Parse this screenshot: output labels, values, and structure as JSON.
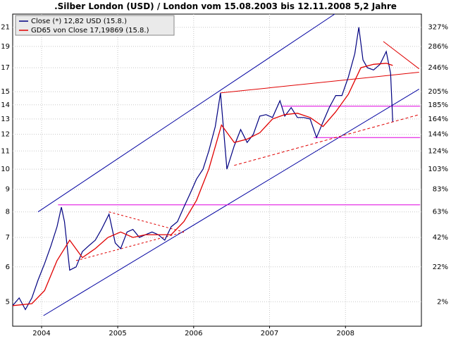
{
  "chart_data": {
    "type": "line",
    "title": ".Silber London (USD) / London vom 15.08.2003 bis 12.11.2008 5,2 Jahre",
    "xlabel": "",
    "ylabel": "",
    "y_scale": "log",
    "ylim": [
      4.4,
      22.5
    ],
    "xlim": [
      "2003-08-15",
      "2008-12-31"
    ],
    "grid": true,
    "legend_position": "top-left",
    "x_tick_labels": [
      "2004",
      "2005",
      "2006",
      "2007",
      "2008"
    ],
    "x_ticks": [
      "2004-01-01",
      "2005-01-01",
      "2006-01-01",
      "2007-01-01",
      "2008-01-01"
    ],
    "y_tick_labels_left": [
      "5",
      "6",
      "7",
      "8",
      "9",
      "10",
      "11",
      "12",
      "13",
      "14",
      "15",
      "17",
      "19",
      "21"
    ],
    "y_ticks_left": [
      5,
      6,
      7,
      8,
      9,
      10,
      11,
      12,
      13,
      14,
      15,
      17,
      19,
      21
    ],
    "y_tick_labels_right": [
      "2%",
      "22%",
      "42%",
      "63%",
      "83%",
      "103%",
      "124%",
      "144%",
      "164%",
      "185%",
      "205%",
      "246%",
      "286%",
      "327%"
    ],
    "series": [
      {
        "name": "Close (*) 12,82 USD (15.8.)",
        "color": "#000080",
        "points": [
          [
            "2003-08-15",
            4.9
          ],
          [
            "2003-09-15",
            5.1
          ],
          [
            "2003-10-15",
            4.8
          ],
          [
            "2003-11-15",
            5.1
          ],
          [
            "2003-12-15",
            5.6
          ],
          [
            "2004-01-15",
            6.1
          ],
          [
            "2004-02-15",
            6.7
          ],
          [
            "2004-03-15",
            7.4
          ],
          [
            "2004-04-05",
            8.2
          ],
          [
            "2004-04-20",
            7.6
          ],
          [
            "2004-05-15",
            5.9
          ],
          [
            "2004-06-15",
            6.0
          ],
          [
            "2004-07-15",
            6.5
          ],
          [
            "2004-08-15",
            6.7
          ],
          [
            "2004-09-15",
            6.9
          ],
          [
            "2004-10-15",
            7.3
          ],
          [
            "2004-11-20",
            7.9
          ],
          [
            "2004-12-20",
            6.8
          ],
          [
            "2005-01-15",
            6.6
          ],
          [
            "2005-02-15",
            7.2
          ],
          [
            "2005-03-15",
            7.3
          ],
          [
            "2005-04-15",
            7.0
          ],
          [
            "2005-05-15",
            7.1
          ],
          [
            "2005-06-15",
            7.2
          ],
          [
            "2005-07-15",
            7.1
          ],
          [
            "2005-08-15",
            6.9
          ],
          [
            "2005-09-15",
            7.4
          ],
          [
            "2005-10-15",
            7.6
          ],
          [
            "2005-11-15",
            8.2
          ],
          [
            "2005-12-15",
            8.8
          ],
          [
            "2006-01-15",
            9.5
          ],
          [
            "2006-02-15",
            10.0
          ],
          [
            "2006-03-15",
            11.0
          ],
          [
            "2006-04-15",
            12.5
          ],
          [
            "2006-05-10",
            14.9
          ],
          [
            "2006-06-10",
            10.0
          ],
          [
            "2006-07-15",
            11.3
          ],
          [
            "2006-08-15",
            12.3
          ],
          [
            "2006-09-15",
            11.5
          ],
          [
            "2006-10-15",
            12.0
          ],
          [
            "2006-11-15",
            13.2
          ],
          [
            "2006-12-15",
            13.3
          ],
          [
            "2007-01-15",
            13.1
          ],
          [
            "2007-02-20",
            14.3
          ],
          [
            "2007-03-15",
            13.2
          ],
          [
            "2007-04-15",
            13.8
          ],
          [
            "2007-05-15",
            13.1
          ],
          [
            "2007-06-15",
            13.1
          ],
          [
            "2007-07-15",
            13.0
          ],
          [
            "2007-08-15",
            11.8
          ],
          [
            "2007-09-15",
            12.8
          ],
          [
            "2007-10-15",
            13.8
          ],
          [
            "2007-11-15",
            14.7
          ],
          [
            "2007-12-15",
            14.7
          ],
          [
            "2008-01-15",
            16.2
          ],
          [
            "2008-02-15",
            18.3
          ],
          [
            "2008-03-05",
            21.0
          ],
          [
            "2008-03-25",
            17.7
          ],
          [
            "2008-04-15",
            17.0
          ],
          [
            "2008-05-15",
            16.8
          ],
          [
            "2008-06-15",
            17.3
          ],
          [
            "2008-07-15",
            18.5
          ],
          [
            "2008-08-05",
            16.5
          ],
          [
            "2008-08-15",
            12.82
          ]
        ]
      },
      {
        "name": "GD65 von Close 17,19869 (15.8.)",
        "color": "#e00000",
        "points": [
          [
            "2003-08-15",
            4.9
          ],
          [
            "2003-11-15",
            4.95
          ],
          [
            "2004-01-15",
            5.3
          ],
          [
            "2004-03-15",
            6.2
          ],
          [
            "2004-05-15",
            6.9
          ],
          [
            "2004-07-15",
            6.3
          ],
          [
            "2004-09-15",
            6.6
          ],
          [
            "2004-11-15",
            7.0
          ],
          [
            "2005-01-15",
            7.2
          ],
          [
            "2005-03-15",
            7.0
          ],
          [
            "2005-05-15",
            7.1
          ],
          [
            "2005-07-15",
            7.1
          ],
          [
            "2005-09-15",
            7.1
          ],
          [
            "2005-11-15",
            7.6
          ],
          [
            "2006-01-15",
            8.5
          ],
          [
            "2006-03-15",
            10.0
          ],
          [
            "2006-05-15",
            12.6
          ],
          [
            "2006-07-15",
            11.5
          ],
          [
            "2006-09-15",
            11.7
          ],
          [
            "2006-11-15",
            12.1
          ],
          [
            "2007-01-15",
            13.0
          ],
          [
            "2007-03-15",
            13.3
          ],
          [
            "2007-05-15",
            13.4
          ],
          [
            "2007-07-15",
            13.1
          ],
          [
            "2007-09-15",
            12.5
          ],
          [
            "2007-11-15",
            13.5
          ],
          [
            "2008-01-15",
            14.8
          ],
          [
            "2008-03-15",
            17.0
          ],
          [
            "2008-05-15",
            17.3
          ],
          [
            "2008-07-15",
            17.4
          ],
          [
            "2008-08-15",
            17.2
          ]
        ]
      }
    ]
  }
}
